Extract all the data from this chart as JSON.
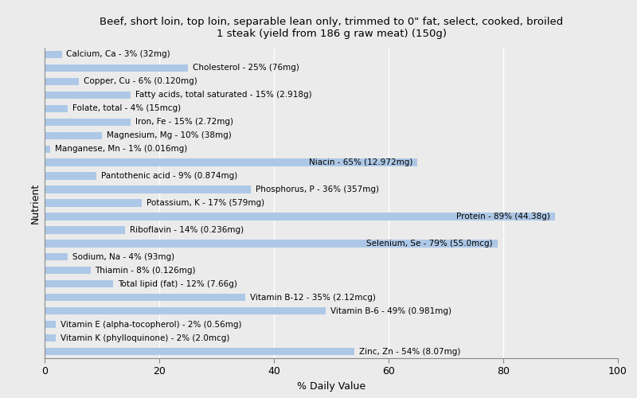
{
  "title": "Beef, short loin, top loin, separable lean only, trimmed to 0\" fat, select, cooked, broiled\n1 steak (yield from 186 g raw meat) (150g)",
  "xlabel": "% Daily Value",
  "ylabel": "Nutrient",
  "xlim": [
    0,
    100
  ],
  "bar_color": "#adc8e6",
  "background_color": "#ebebeb",
  "plot_bg_color": "#ebebeb",
  "grid_color": "#ffffff",
  "nutrients": [
    {
      "label": "Calcium, Ca - 3% (32mg)",
      "value": 3
    },
    {
      "label": "Cholesterol - 25% (76mg)",
      "value": 25
    },
    {
      "label": "Copper, Cu - 6% (0.120mg)",
      "value": 6
    },
    {
      "label": "Fatty acids, total saturated - 15% (2.918g)",
      "value": 15
    },
    {
      "label": "Folate, total - 4% (15mcg)",
      "value": 4
    },
    {
      "label": "Iron, Fe - 15% (2.72mg)",
      "value": 15
    },
    {
      "label": "Magnesium, Mg - 10% (38mg)",
      "value": 10
    },
    {
      "label": "Manganese, Mn - 1% (0.016mg)",
      "value": 1
    },
    {
      "label": "Niacin - 65% (12.972mg)",
      "value": 65
    },
    {
      "label": "Pantothenic acid - 9% (0.874mg)",
      "value": 9
    },
    {
      "label": "Phosphorus, P - 36% (357mg)",
      "value": 36
    },
    {
      "label": "Potassium, K - 17% (579mg)",
      "value": 17
    },
    {
      "label": "Protein - 89% (44.38g)",
      "value": 89
    },
    {
      "label": "Riboflavin - 14% (0.236mg)",
      "value": 14
    },
    {
      "label": "Selenium, Se - 79% (55.0mcg)",
      "value": 79
    },
    {
      "label": "Sodium, Na - 4% (93mg)",
      "value": 4
    },
    {
      "label": "Thiamin - 8% (0.126mg)",
      "value": 8
    },
    {
      "label": "Total lipid (fat) - 12% (7.66g)",
      "value": 12
    },
    {
      "label": "Vitamin B-12 - 35% (2.12mcg)",
      "value": 35
    },
    {
      "label": "Vitamin B-6 - 49% (0.981mg)",
      "value": 49
    },
    {
      "label": "Vitamin E (alpha-tocopherol) - 2% (0.56mg)",
      "value": 2
    },
    {
      "label": "Vitamin K (phylloquinone) - 2% (2.0mcg)",
      "value": 2
    },
    {
      "label": "Zinc, Zn - 54% (8.07mg)",
      "value": 54
    }
  ],
  "label_inside_threshold": 55,
  "title_fontsize": 9.5,
  "label_fontsize": 7.5,
  "axis_fontsize": 9,
  "bar_height": 0.55
}
